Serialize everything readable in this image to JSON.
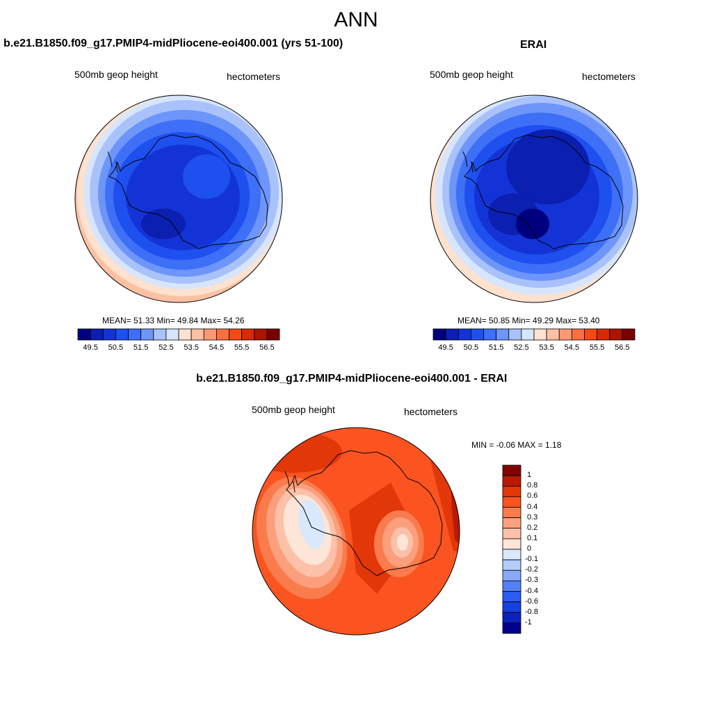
{
  "main_title": "ANN",
  "panels": {
    "model": {
      "title": "b.e21.B1850.f09_g17.PMIP4-midPliocene-eoi400.001 (yrs 51-100)",
      "variable": "500mb geop height",
      "units": "hectometers",
      "stats": "MEAN=  51.33  Min=  49.84  Max=  54.26"
    },
    "obs": {
      "title": "ERAI",
      "variable": "500mb geop height",
      "units": "hectometers",
      "stats": "MEAN=  50.85  Min=  49.29  Max=  53.40"
    },
    "diff": {
      "title": "b.e21.B1850.f09_g17.PMIP4-midPliocene-eoi400.001 - ERAI",
      "variable": "500mb geop height",
      "units": "hectometers",
      "stats": "MIN =  -0.06 MAX =   1.18"
    }
  },
  "abs_colorbar": {
    "colors": [
      "#00007f",
      "#0b1fb0",
      "#1433d6",
      "#1e4fef",
      "#3d6ff7",
      "#6d95fa",
      "#a9c2fb",
      "#d7e6fc",
      "#fee1ce",
      "#fcc1a3",
      "#fb9a72",
      "#f9703f",
      "#f34a14",
      "#d82a05",
      "#a91503",
      "#7a0000"
    ],
    "labels": [
      "49.5",
      "50.5",
      "51.5",
      "52.5",
      "53.5",
      "54.5",
      "55.5",
      "56.5"
    ]
  },
  "diff_colorbar": {
    "colors_top_to_bottom": [
      "#830000",
      "#b81a02",
      "#e23708",
      "#fb5420",
      "#fa7c4c",
      "#fb9f7d",
      "#fcc1a8",
      "#fde6d8",
      "#dae8fb",
      "#b2cdfb",
      "#86a9f9",
      "#5580f7",
      "#2c5cf0",
      "#1540e0",
      "#0b22bd",
      "#00008b"
    ],
    "labels": [
      "1",
      "0.8",
      "0.6",
      "0.4",
      "0.3",
      "0.2",
      "0.1",
      "0",
      "-0.1",
      "-0.2",
      "-0.3",
      "-0.4",
      "-0.6",
      "-0.8",
      "-1"
    ]
  }
}
